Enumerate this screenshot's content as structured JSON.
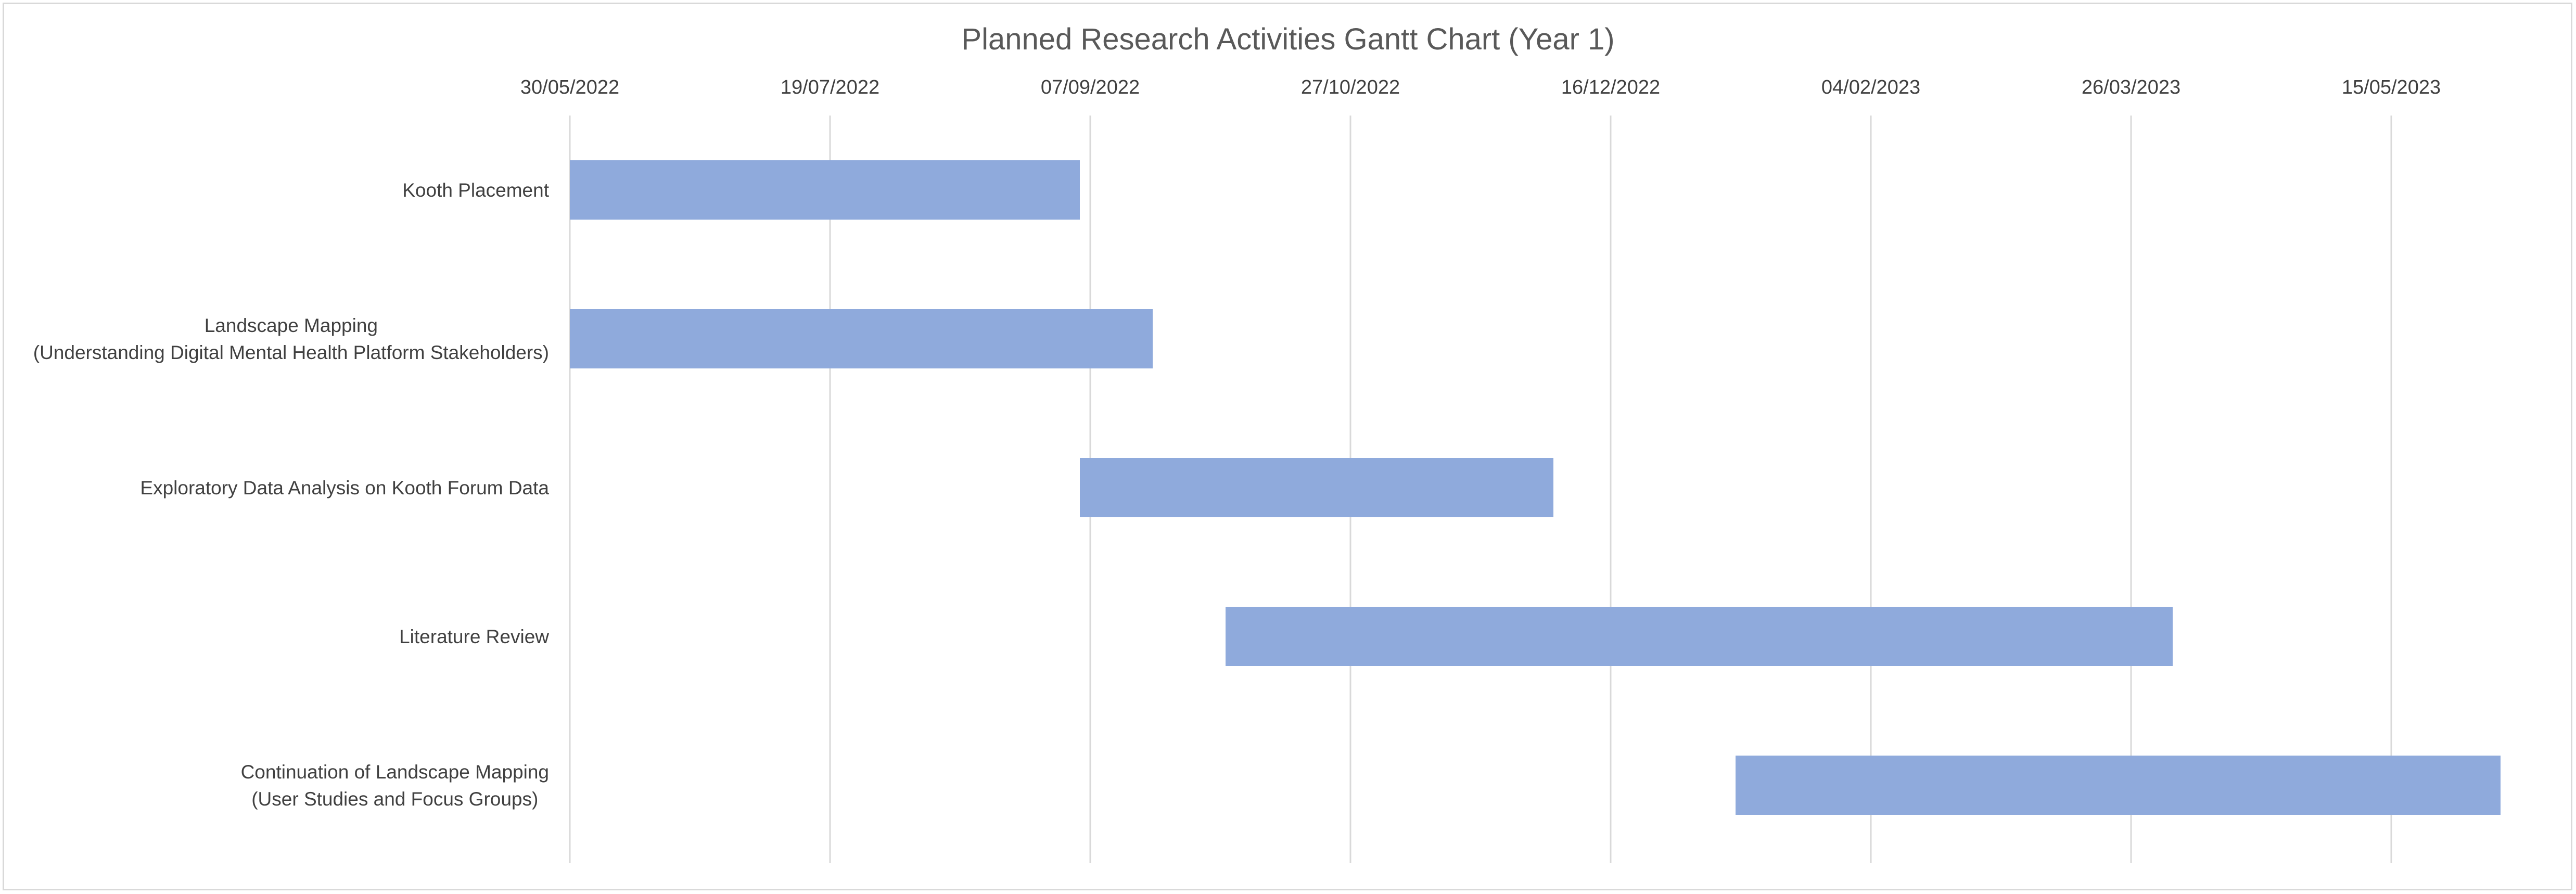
{
  "chart_data": {
    "type": "bar",
    "orientation": "horizontal",
    "stacked_gantt": true,
    "title": "Planned Research Activities Gantt Chart (Year 1)",
    "xlabel": "",
    "ylabel": "",
    "x_axis_position": "top",
    "x_ticks": [
      "30/05/2022",
      "19/07/2022",
      "07/09/2022",
      "27/10/2022",
      "16/12/2022",
      "04/02/2023",
      "26/03/2023",
      "15/05/2023"
    ],
    "xlim": [
      "2022-05-30",
      "2023-06-06"
    ],
    "grid": true,
    "legend": "none",
    "bar_color": "#8faadc",
    "categories": [
      [
        "Kooth Placement"
      ],
      [
        "Landscape Mapping",
        "(Understanding Digital Mental Health Platform Stakeholders)"
      ],
      [
        "Exploratory Data Analysis on Kooth Forum Data"
      ],
      [
        "Literature Review"
      ],
      [
        "Continuation of Landscape Mapping",
        "(User Studies and Focus Groups)"
      ]
    ],
    "series": [
      {
        "values": [
          {
            "start": "2022-05-30",
            "end": "2022-09-05"
          },
          {
            "start": "2022-05-30",
            "end": "2022-09-19"
          },
          {
            "start": "2022-09-05",
            "end": "2022-12-05"
          },
          {
            "start": "2022-10-03",
            "end": "2023-04-03"
          },
          {
            "start": "2023-01-09",
            "end": "2023-06-05"
          }
        ]
      }
    ]
  }
}
